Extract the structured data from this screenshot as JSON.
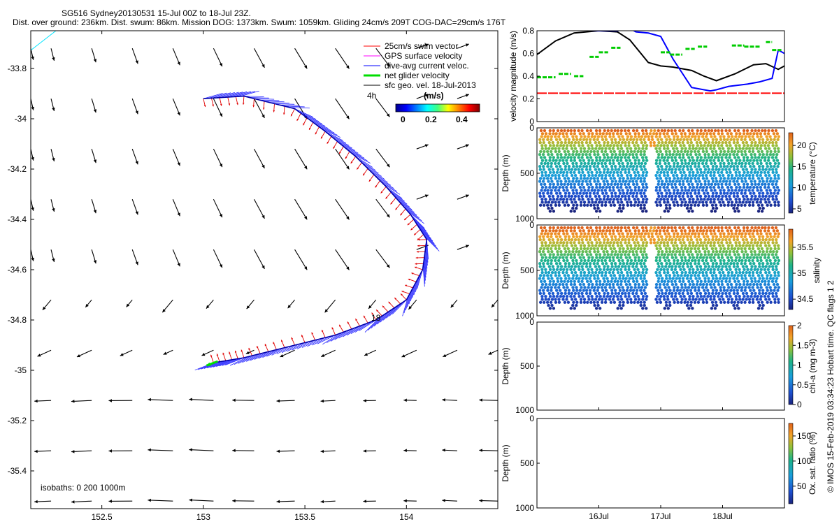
{
  "title_line1": "SG516 Sydney20130531 15-Jul 00Z to 18-Jul 23Z.",
  "title_line2": "Dist. over ground: 236km. Dist. swum: 86km. Mission DOG: 1373km. Swum: 1059km. Gliding 24cm/s 209T COG-DAC=29cm/s 176T",
  "footer_vertical": "© IMOS 15-Feb-2019 03:34:23 Hobart time. QC flags 1 2",
  "colors": {
    "swim": "#ff0000",
    "gps": "#ff00ff",
    "dac": "#0000ff",
    "net": "#00dd00",
    "sfc": "#000000",
    "track_red": "#cc0000"
  },
  "chart_data": [
    {
      "type": "vector-map",
      "xlim": [
        152.15,
        154.45
      ],
      "ylim": [
        -35.55,
        -33.65
      ],
      "xticks": [
        152.5,
        153,
        153.5,
        154
      ],
      "xtick_labels": [
        "152.5",
        "153",
        "153.5",
        "154"
      ],
      "yticks": [
        -33.8,
        -34,
        -34.2,
        -34.4,
        -34.6,
        -34.8,
        -35,
        -35.2,
        -35.4
      ],
      "ytick_labels": [
        "-33.8",
        "-34",
        "-34.2",
        "-34.4",
        "-34.6",
        "-34.8",
        "-35",
        "-35.2",
        "-35.4"
      ],
      "legend": [
        {
          "label": "25cm/s swim vector",
          "color": "#ff0000"
        },
        {
          "label": "GPS surface velocity",
          "color": "#ff00ff"
        },
        {
          "label": "dive-avg current veloc.",
          "color": "#0000ff"
        },
        {
          "label": "net glider velocity",
          "color": "#00dd00"
        },
        {
          "label": "sfc geo. vel. 18-Jul-2013",
          "color": "#000000"
        }
      ],
      "colorbar": {
        "label": "(m/s)",
        "ticks": [
          "0",
          "0.2",
          "0.4"
        ]
      },
      "annotations": [
        "4h",
        "18"
      ],
      "isobaths_label": "isobaths: 0   200  1000m",
      "track": [
        [
          153.0,
          -33.92
        ],
        [
          153.2,
          -33.91
        ],
        [
          153.45,
          -33.96
        ],
        [
          153.6,
          -34.05
        ],
        [
          153.75,
          -34.15
        ],
        [
          153.9,
          -34.27
        ],
        [
          154.02,
          -34.38
        ],
        [
          154.1,
          -34.48
        ],
        [
          154.08,
          -34.6
        ],
        [
          154.0,
          -34.72
        ],
        [
          153.85,
          -34.8
        ],
        [
          153.65,
          -34.86
        ],
        [
          153.4,
          -34.91
        ],
        [
          153.2,
          -34.95
        ],
        [
          153.05,
          -34.97
        ]
      ],
      "vector_grid": {
        "lons": [
          152.15,
          152.25,
          152.45,
          152.65,
          152.85,
          153.05,
          153.25,
          153.45,
          153.65,
          153.85,
          154.05,
          154.25,
          154.45
        ],
        "lats": [
          -33.72,
          -33.92,
          -34.12,
          -34.32,
          -34.52,
          -34.72,
          -34.92,
          -35.12,
          -35.32,
          -35.52
        ],
        "scale_m_s": 0.5
      }
    },
    {
      "type": "line",
      "xlim": [
        15.0,
        19.0
      ],
      "ylim": [
        0,
        0.8
      ],
      "yticks": [
        0,
        0.2,
        0.4,
        0.6,
        0.8
      ],
      "ytick_labels": [
        "0",
        "0.2",
        "0.4",
        "0.6",
        "0.8"
      ],
      "ylabel": "velocity magnitude (m/s)",
      "series": [
        {
          "name": "25cm/s swim vector",
          "color": "#ff0000",
          "style": "dashed",
          "x": [
            15.0,
            19.0
          ],
          "y": [
            0.25,
            0.25
          ]
        },
        {
          "name": "sfc speed",
          "color": "#000000",
          "x": [
            15.0,
            15.3,
            15.6,
            16.0,
            16.3,
            16.5,
            16.8,
            17.0,
            17.2,
            17.5,
            17.7,
            17.9,
            18.2,
            18.5,
            18.7,
            18.9,
            19.0
          ],
          "y": [
            0.59,
            0.71,
            0.78,
            0.8,
            0.79,
            0.72,
            0.52,
            0.49,
            0.48,
            0.45,
            0.4,
            0.36,
            0.42,
            0.5,
            0.51,
            0.46,
            0.49
          ]
        },
        {
          "name": "dive-avg speed",
          "color": "#0000ff",
          "x": [
            15.0,
            15.5,
            16.0,
            16.3,
            16.5,
            16.6,
            16.8,
            17.0,
            17.2,
            17.5,
            17.8,
            17.9,
            18.1,
            18.4,
            18.6,
            18.8,
            18.9,
            19.0
          ],
          "y": [
            0.82,
            0.81,
            0.8,
            0.8,
            0.82,
            0.79,
            0.78,
            0.75,
            0.55,
            0.3,
            0.27,
            0.28,
            0.31,
            0.33,
            0.35,
            0.38,
            0.63,
            0.6
          ]
        },
        {
          "name": "net glider speed",
          "color": "#00cc00",
          "style": "segments",
          "segments": [
            [
              15.0,
              15.3,
              0.39
            ],
            [
              15.35,
              15.55,
              0.42
            ],
            [
              15.6,
              15.75,
              0.4
            ],
            [
              15.85,
              16.0,
              0.57
            ],
            [
              16.0,
              16.15,
              0.61
            ],
            [
              16.2,
              16.35,
              0.65
            ],
            [
              16.8,
              17.0,
              0.82
            ],
            [
              17.0,
              17.15,
              0.61
            ],
            [
              17.15,
              17.35,
              0.59
            ],
            [
              17.4,
              17.55,
              0.64
            ],
            [
              17.6,
              17.75,
              0.66
            ],
            [
              18.15,
              18.35,
              0.67
            ],
            [
              18.35,
              18.6,
              0.66
            ],
            [
              18.7,
              18.8,
              0.7
            ],
            [
              18.8,
              18.95,
              0.63
            ]
          ]
        }
      ]
    },
    {
      "type": "heatmap",
      "name": "temperature",
      "ylabel": "Depth (m)",
      "ylim": [
        0,
        1000
      ],
      "yticks": [
        0,
        500,
        1000
      ],
      "ytick_labels": [
        "0",
        "500",
        "1000"
      ],
      "colorbar_label": "temperature (°C)",
      "colorbar_ticks": [
        "20",
        "15",
        "10",
        "5"
      ],
      "colorbar_values": [
        20,
        15,
        10,
        5
      ],
      "range": [
        4,
        23
      ],
      "surface_value": 22,
      "deep_value": 5
    },
    {
      "type": "heatmap",
      "name": "salinity",
      "ylabel": "Depth (m)",
      "ylim": [
        0,
        1000
      ],
      "yticks": [
        0,
        500,
        1000
      ],
      "ytick_labels": [
        "0",
        "500",
        "1000"
      ],
      "colorbar_label": "salinity",
      "colorbar_ticks": [
        "35.5",
        "35",
        "34.5"
      ],
      "colorbar_values": [
        35.5,
        35,
        34.5
      ],
      "range": [
        34.3,
        35.85
      ],
      "surface_value": 35.7,
      "deep_value": 34.4
    },
    {
      "type": "heatmap",
      "name": "chl-a",
      "ylabel": "Depth (m)",
      "ylim": [
        0,
        1000
      ],
      "yticks": [
        0,
        500,
        1000
      ],
      "ytick_labels": [
        "0",
        "500",
        "1000"
      ],
      "colorbar_label": "chl-a (mg m-3)",
      "colorbar_ticks": [
        "2",
        "1.5",
        "1",
        "0.5",
        "0"
      ],
      "colorbar_values": [
        2,
        1.5,
        1,
        0.5,
        0
      ],
      "range": [
        0,
        2
      ]
    },
    {
      "type": "heatmap",
      "name": "oxygen",
      "ylabel": "Depth (m)",
      "ylim": [
        0,
        1000
      ],
      "yticks": [
        0,
        500,
        1000
      ],
      "ytick_labels": [
        "0",
        "500",
        "1000"
      ],
      "colorbar_label": "Ox. sat. ratio (%)",
      "colorbar_ticks": [
        "150",
        "100",
        "50"
      ],
      "colorbar_values": [
        150,
        100,
        50
      ],
      "range": [
        15,
        175
      ],
      "xlim": [
        15.0,
        19.0
      ],
      "xticks": [
        16.0,
        17.0,
        18.0
      ],
      "xtick_labels": [
        "16Jul",
        "17Jul",
        "18Jul"
      ]
    }
  ],
  "profiles": {
    "count": 31,
    "gap_index": 14,
    "x_start": 15.04,
    "x_end": 18.96
  }
}
